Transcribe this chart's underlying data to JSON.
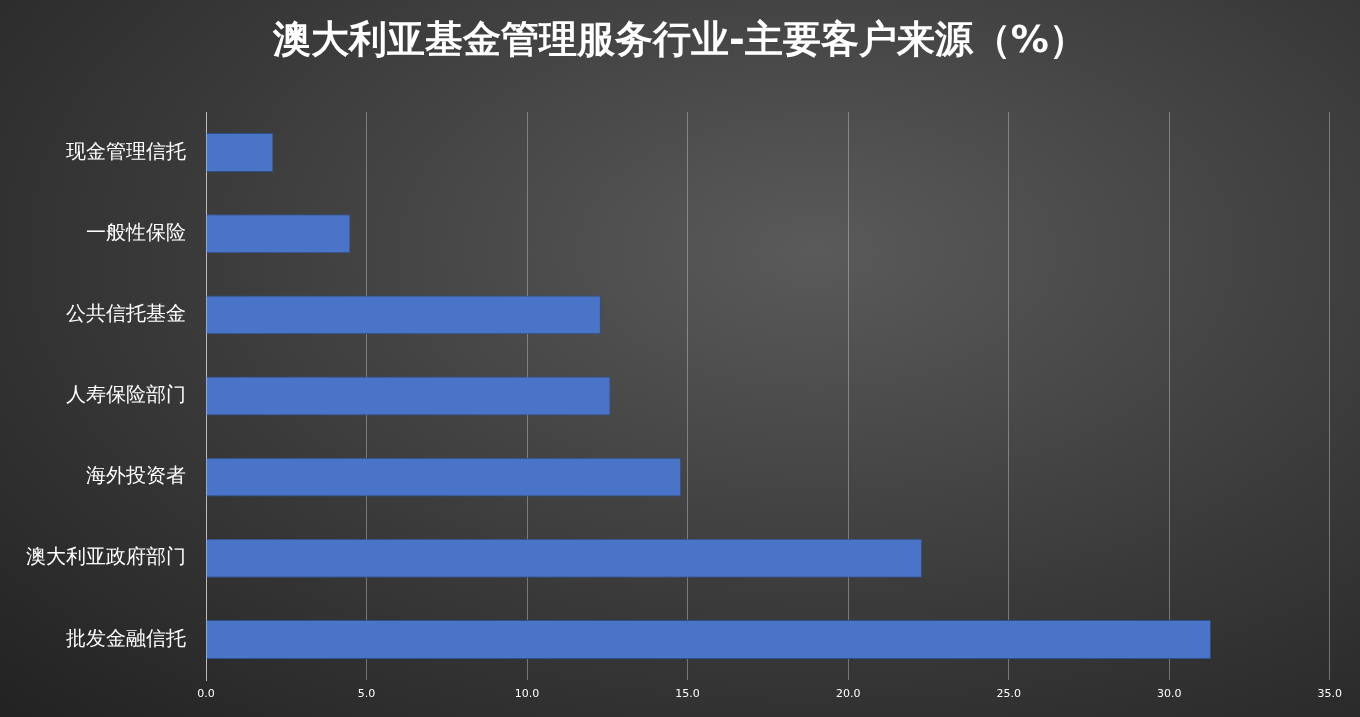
{
  "chart_data": {
    "type": "bar",
    "orientation": "horizontal",
    "title": "澳大利亚基金管理服务行业-主要客户来源（%）",
    "categories": [
      "现金管理信托",
      "一般性保险",
      "公共信托基金",
      "人寿保险部门",
      "海外投资者",
      "澳大利亚政府部门",
      "批发金融信托"
    ],
    "values": [
      2.1,
      4.5,
      12.3,
      12.6,
      14.8,
      22.3,
      31.3
    ],
    "color": "#4a74c8",
    "xlim": [
      0,
      35
    ],
    "xticks": [
      {
        "value": 0,
        "label": "0.0"
      },
      {
        "value": 5,
        "label": "5.0"
      },
      {
        "value": 10,
        "label": "10.0"
      },
      {
        "value": 15,
        "label": "15.0"
      },
      {
        "value": 20,
        "label": "20.0"
      },
      {
        "value": 25,
        "label": "25.0"
      },
      {
        "value": 30,
        "label": "30.0"
      },
      {
        "value": 35,
        "label": "35.0"
      }
    ],
    "grid": "x",
    "legend": false
  }
}
